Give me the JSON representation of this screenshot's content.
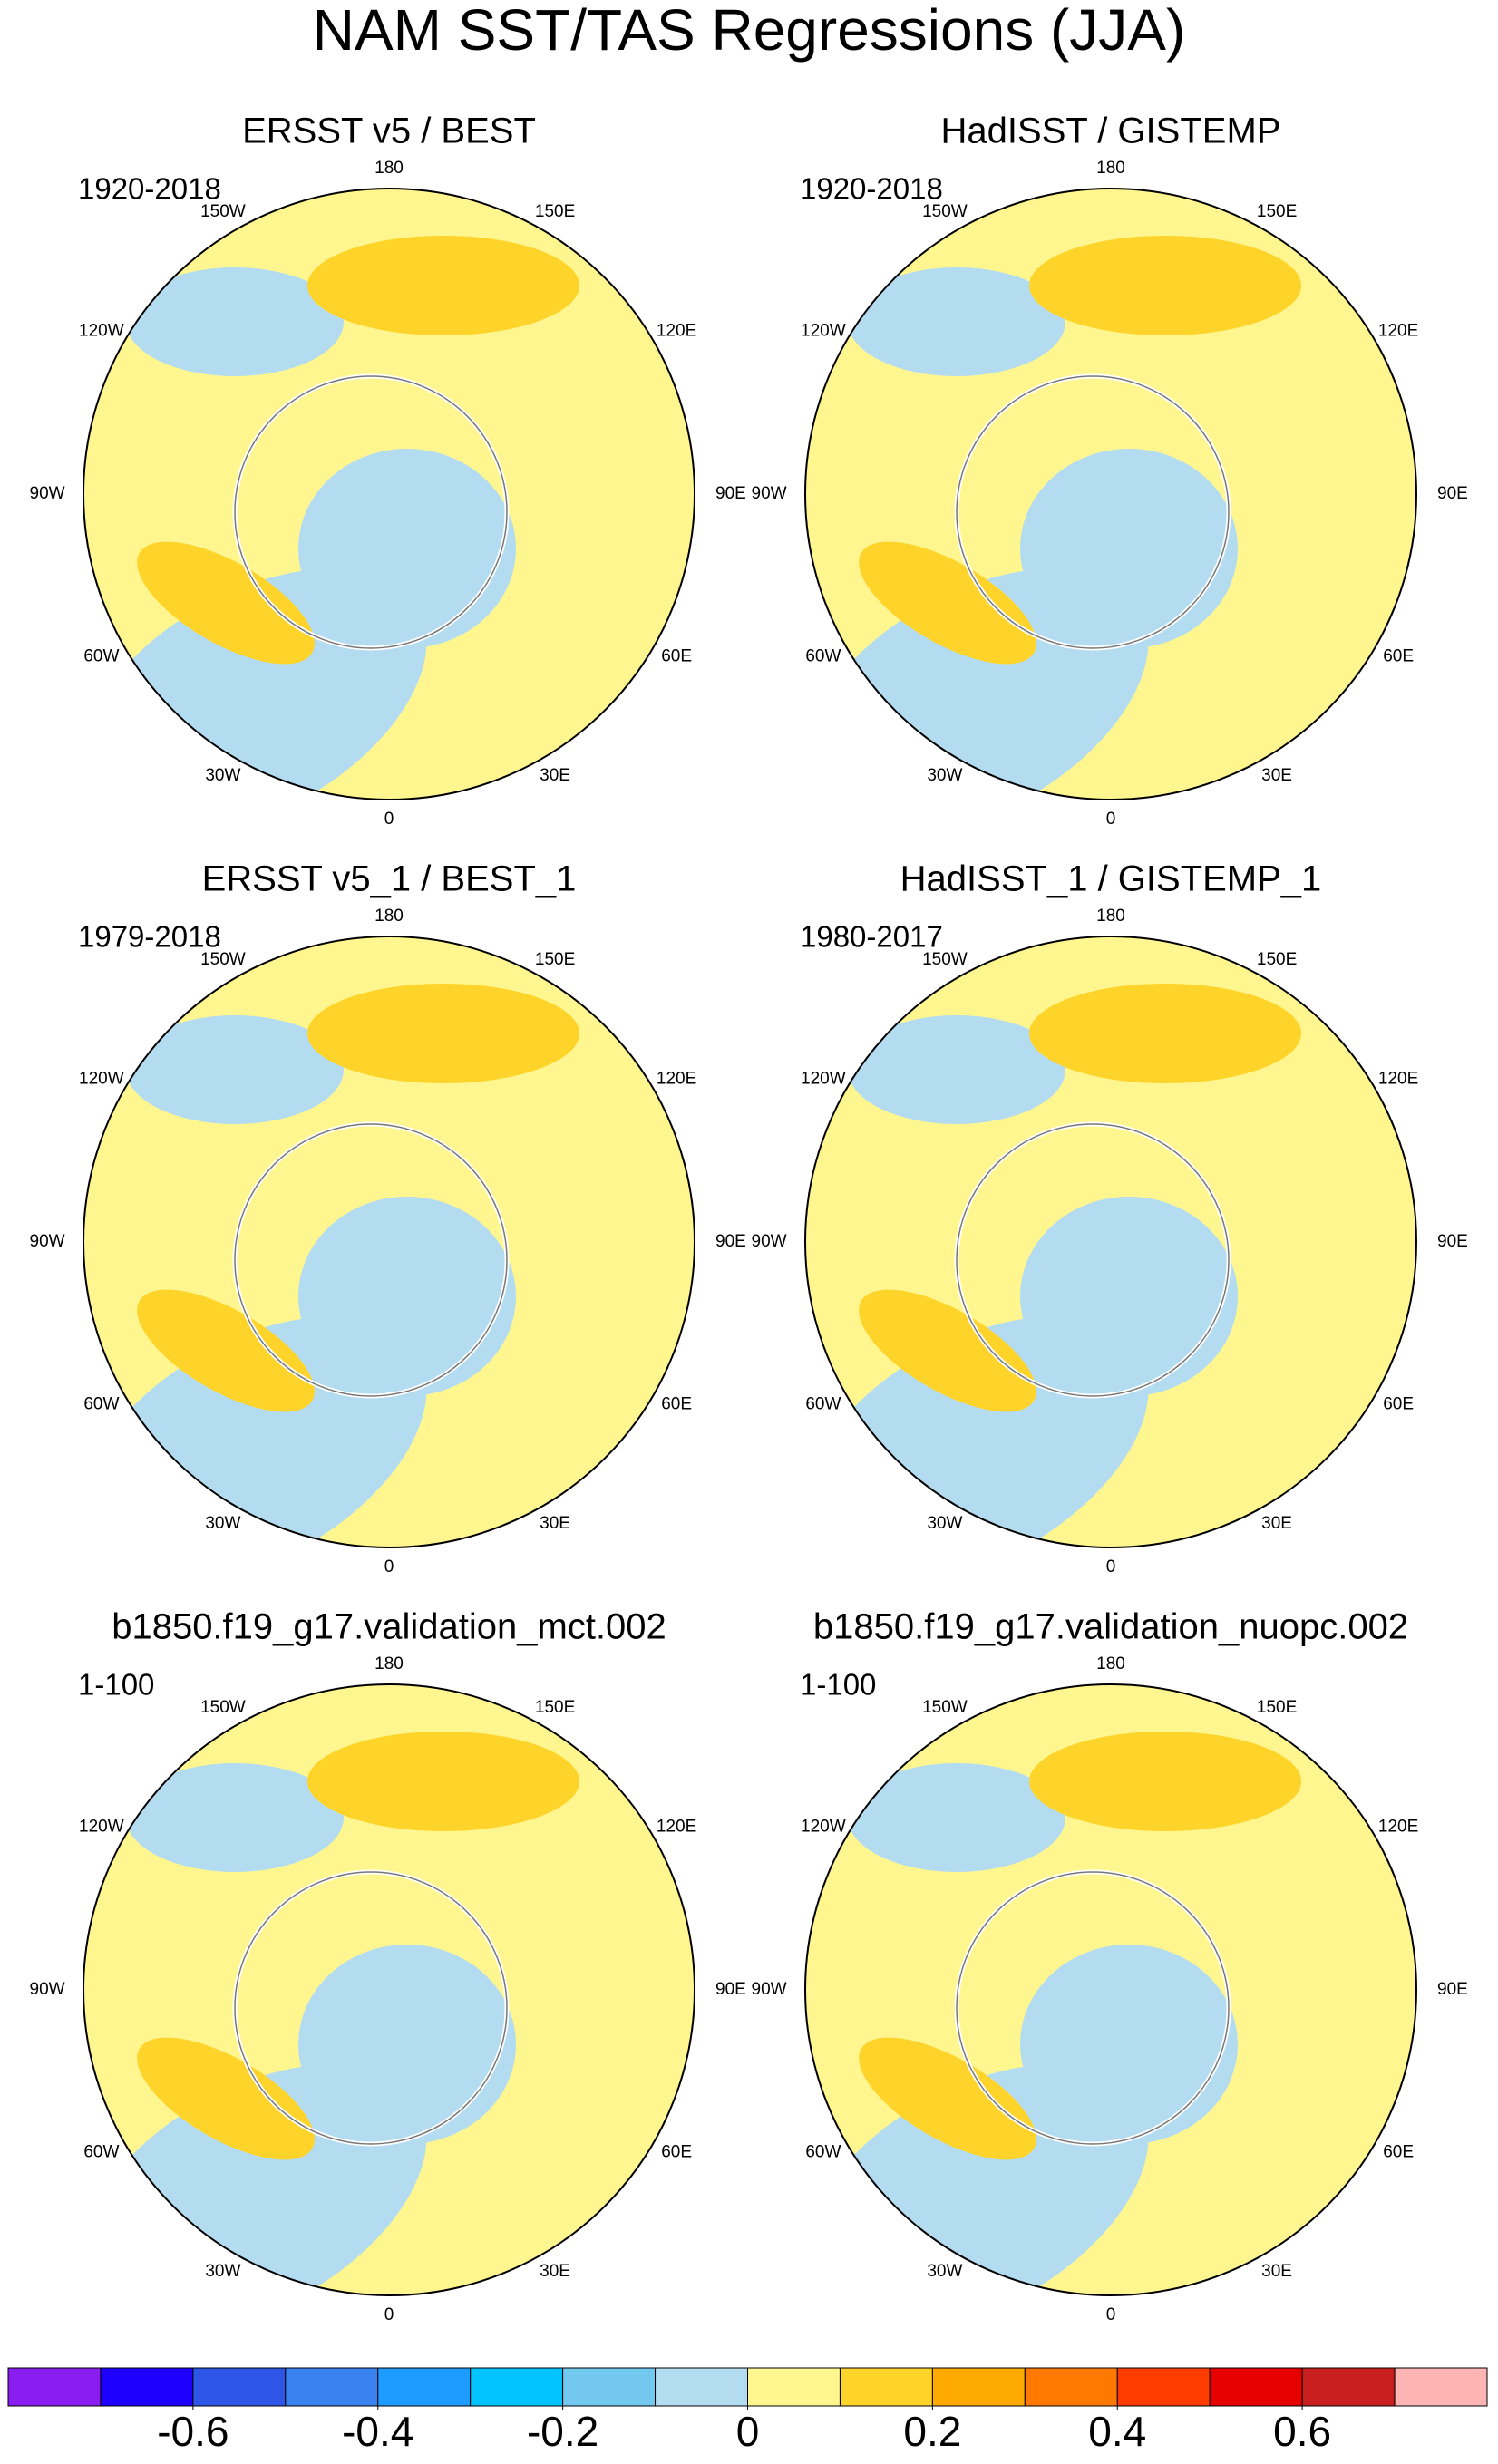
{
  "title": "NAM SST/TAS Regressions (JJA)",
  "lon_labels": [
    "180",
    "150E",
    "120E",
    "90E",
    "60E",
    "30E",
    "0",
    "30W",
    "60W",
    "90W",
    "120W",
    "150W"
  ],
  "panels": [
    {
      "title": "ERSST v5 / BEST",
      "period": "1920-2018"
    },
    {
      "title": "HadISST / GISTEMP",
      "period": "1920-2018"
    },
    {
      "title": "ERSST v5_1 / BEST_1",
      "period": "1979-2018"
    },
    {
      "title": "HadISST_1 / GISTEMP_1",
      "period": "1980-2017"
    },
    {
      "title": "b1850.f19_g17.validation_mct.002",
      "period": "1-100"
    },
    {
      "title": "b1850.f19_g17.validation_nuopc.002",
      "period": "1-100"
    }
  ],
  "colorbar": {
    "colors": [
      "#8a1ef0",
      "#1e00ff",
      "#2d55e6",
      "#3a82f0",
      "#1e9bff",
      "#00c3ff",
      "#73c8f0",
      "#b4dcf0",
      "#fff68f",
      "#ffd42a",
      "#ffaa00",
      "#ff7800",
      "#ff3c00",
      "#e60000",
      "#c81e1e",
      "#ffb4b4"
    ],
    "lim": [
      -0.8,
      0.8
    ],
    "ticks": [
      -0.6,
      -0.4,
      -0.2,
      0,
      0.2,
      0.4,
      0.6
    ]
  }
}
